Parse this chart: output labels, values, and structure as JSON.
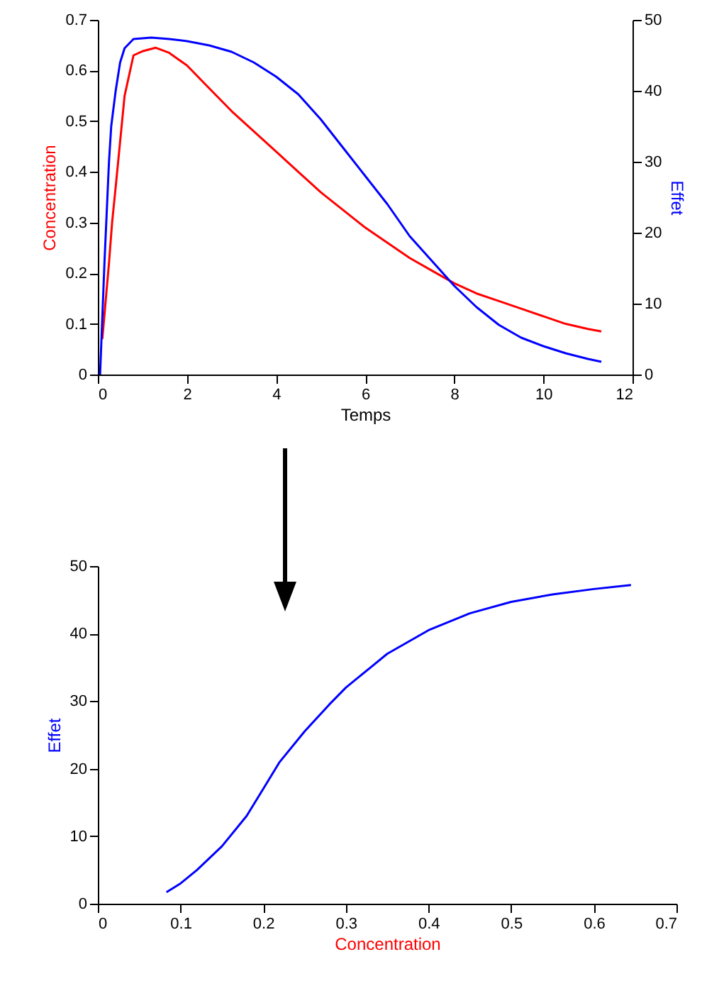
{
  "chart_data": [
    {
      "type": "line",
      "xlabel": "Temps",
      "ylabel": "Concentration",
      "y2label": "Effet",
      "xlim": [
        0,
        12
      ],
      "xticks": [
        0,
        2,
        4,
        6,
        8,
        10,
        12
      ],
      "ylim": [
        0,
        0.7
      ],
      "yticks": [
        0,
        0.1,
        0.2,
        0.3,
        0.4,
        0.5,
        0.6,
        0.7
      ],
      "y2lim": [
        0,
        50
      ],
      "y2ticks": [
        0,
        10,
        20,
        30,
        40,
        50
      ],
      "grid": false,
      "series": [
        {
          "color": "#ff0000",
          "x": [
            0.1,
            0.18,
            0.25,
            0.32,
            0.4,
            0.5,
            0.6,
            0.8,
            1.0,
            1.3,
            1.6,
            2,
            2.5,
            3,
            3.5,
            4,
            4.5,
            5,
            5.5,
            6,
            6.5,
            7,
            7.5,
            8,
            8.5,
            9,
            9.5,
            10,
            10.5,
            11,
            11.3
          ],
          "values": [
            0.07,
            0.15,
            0.22,
            0.3,
            0.37,
            0.46,
            0.55,
            0.63,
            0.638,
            0.645,
            0.635,
            0.61,
            0.565,
            0.52,
            0.48,
            0.44,
            0.4,
            0.36,
            0.325,
            0.29,
            0.26,
            0.23,
            0.205,
            0.18,
            0.16,
            0.145,
            0.13,
            0.115,
            0.1,
            0.09,
            0.085
          ]
        },
        {
          "color": "#0000ff",
          "axis": "y2",
          "x": [
            0.05,
            0.1,
            0.15,
            0.2,
            0.25,
            0.3,
            0.4,
            0.5,
            0.6,
            0.8,
            1.2,
            1.6,
            2,
            2.5,
            3,
            3.5,
            4,
            4.5,
            5,
            5.5,
            6,
            6.5,
            7,
            7.5,
            8,
            8.5,
            9,
            9.5,
            10,
            10.5,
            11,
            11.3
          ],
          "values": [
            0,
            8,
            16,
            23,
            30,
            35,
            40,
            44,
            46,
            47.3,
            47.5,
            47.3,
            47,
            46.4,
            45.5,
            44,
            42,
            39.5,
            36,
            32,
            28,
            24,
            19.5,
            16,
            12.5,
            9.5,
            7,
            5.2,
            4,
            3,
            2.2,
            1.8
          ]
        }
      ]
    },
    {
      "type": "line",
      "xlabel": "Concentration",
      "ylabel": "Effet",
      "xlim": [
        0,
        0.7
      ],
      "xticks": [
        0,
        0.1,
        0.2,
        0.3,
        0.4,
        0.5,
        0.6,
        0.7
      ],
      "ylim": [
        0,
        50
      ],
      "yticks": [
        0,
        10,
        20,
        30,
        40,
        50
      ],
      "grid": false,
      "series": [
        {
          "color": "#0000ff",
          "x": [
            0.083,
            0.1,
            0.12,
            0.15,
            0.18,
            0.2,
            0.22,
            0.25,
            0.28,
            0.3,
            0.33,
            0.35,
            0.4,
            0.45,
            0.5,
            0.55,
            0.6,
            0.645
          ],
          "values": [
            1.7,
            3,
            5,
            8.5,
            13,
            17,
            21,
            25.5,
            29.5,
            32,
            35,
            37,
            40.5,
            43,
            44.7,
            45.8,
            46.6,
            47.2
          ]
        }
      ]
    }
  ]
}
